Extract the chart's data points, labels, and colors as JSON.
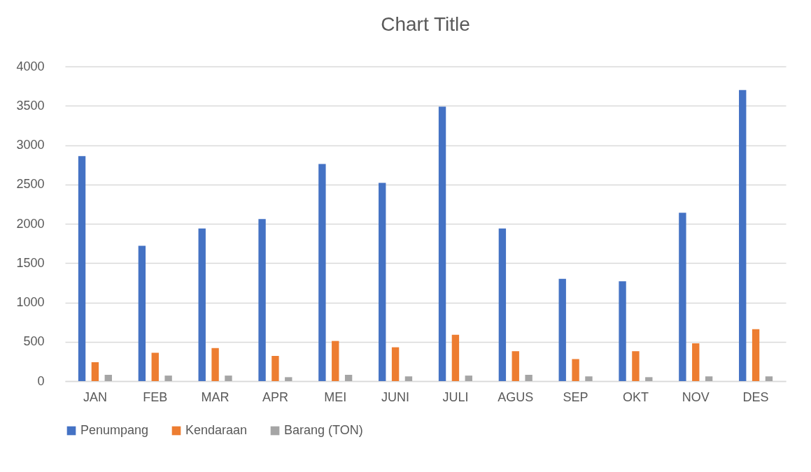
{
  "chart_data": {
    "type": "bar",
    "title": "Chart Title",
    "categories": [
      "JAN",
      "FEB",
      "MAR",
      "APR",
      "MEI",
      "JUNI",
      "JULI",
      "AGUS",
      "SEP",
      "OKT",
      "NOV",
      "DES"
    ],
    "series": [
      {
        "name": "Penumpang",
        "color": "#4472c4",
        "values": [
          2860,
          1720,
          1940,
          2060,
          2760,
          2520,
          3490,
          1940,
          1300,
          1270,
          2140,
          3700
        ]
      },
      {
        "name": "Kendaraan",
        "color": "#ed7d31",
        "values": [
          240,
          360,
          420,
          320,
          510,
          430,
          590,
          380,
          280,
          380,
          480,
          660
        ]
      },
      {
        "name": "Barang (TON)",
        "color": "#a5a5a5",
        "values": [
          80,
          70,
          70,
          50,
          80,
          60,
          70,
          80,
          60,
          50,
          60,
          60
        ]
      }
    ],
    "ylim": [
      0,
      4000
    ],
    "yticks": [
      0,
      500,
      1000,
      1500,
      2000,
      2500,
      3000,
      3500,
      4000
    ],
    "grid": "y",
    "legend": "bottom"
  }
}
